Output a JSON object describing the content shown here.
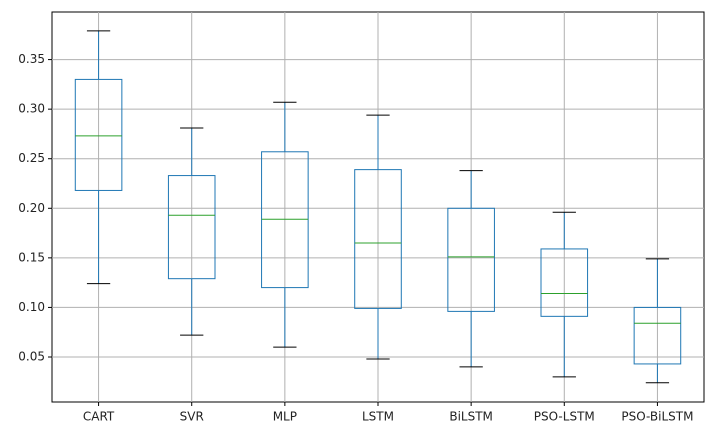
{
  "chart_data": {
    "type": "box",
    "categories": [
      "CART",
      "SVR",
      "MLP",
      "LSTM",
      "BiLSTM",
      "PSO-LSTM",
      "PSO-BiLSTM"
    ],
    "boxes": [
      {
        "min": 0.124,
        "q1": 0.218,
        "median": 0.273,
        "q3": 0.33,
        "max": 0.379
      },
      {
        "min": 0.072,
        "q1": 0.129,
        "median": 0.193,
        "q3": 0.233,
        "max": 0.281
      },
      {
        "min": 0.06,
        "q1": 0.12,
        "median": 0.189,
        "q3": 0.257,
        "max": 0.307
      },
      {
        "min": 0.048,
        "q1": 0.099,
        "median": 0.165,
        "q3": 0.239,
        "max": 0.294
      },
      {
        "min": 0.04,
        "q1": 0.096,
        "median": 0.151,
        "q3": 0.2,
        "max": 0.238
      },
      {
        "min": 0.03,
        "q1": 0.091,
        "median": 0.114,
        "q3": 0.159,
        "max": 0.196
      },
      {
        "min": 0.024,
        "q1": 0.043,
        "median": 0.084,
        "q3": 0.1,
        "max": 0.149
      }
    ],
    "color": "#1f77b4",
    "median_color": "#2ca02c",
    "whisker_color": "#000000",
    "ylim": [
      0.0046,
      0.398
    ],
    "yticks": [
      0.05,
      {
        "value": 0.1,
        "label": "0.10"
      },
      0.15,
      {
        "value": 0.2,
        "label": "0.20"
      },
      0.25,
      {
        "value": 0.3,
        "label": "0.30"
      },
      0.35
    ],
    "grid": true
  }
}
